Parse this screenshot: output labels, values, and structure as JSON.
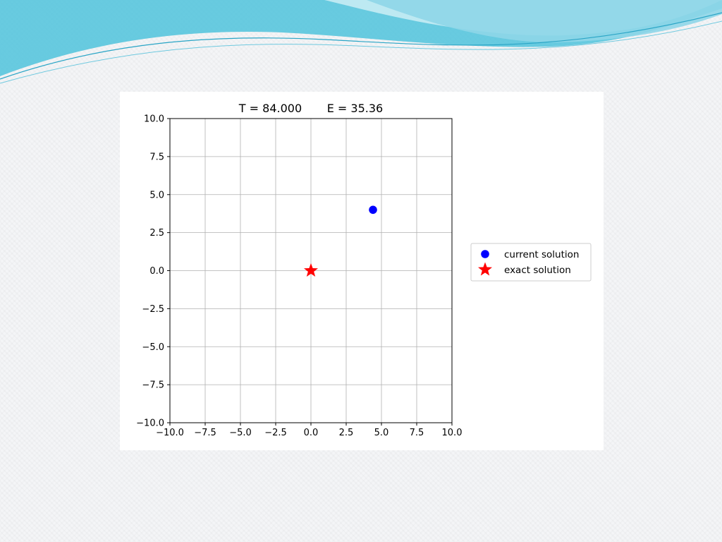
{
  "slide": {
    "banner_colors": [
      "#4fc3dc",
      "#8ed6e8",
      "#c7ecf4"
    ]
  },
  "chart_data": {
    "type": "scatter",
    "title": "T = 84.000       E = 35.36",
    "xlabel": "",
    "ylabel": "",
    "xlim": [
      -10.0,
      10.0
    ],
    "ylim": [
      -10.0,
      10.0
    ],
    "xticks": [
      "−10.0",
      "−7.5",
      "−5.0",
      "−2.5",
      "0.0",
      "2.5",
      "5.0",
      "7.5",
      "10.0"
    ],
    "yticks": [
      "−10.0",
      "−7.5",
      "−5.0",
      "−2.5",
      "0.0",
      "2.5",
      "5.0",
      "7.5",
      "10.0"
    ],
    "grid": true,
    "legend_position": "right, outside plot",
    "series": [
      {
        "name": "current solution",
        "marker": "circle",
        "color": "#0000ff",
        "points": [
          [
            4.4,
            4.0
          ]
        ]
      },
      {
        "name": "exact solution",
        "marker": "star",
        "color": "#ff0000",
        "points": [
          [
            0.0,
            0.0
          ]
        ]
      }
    ]
  }
}
